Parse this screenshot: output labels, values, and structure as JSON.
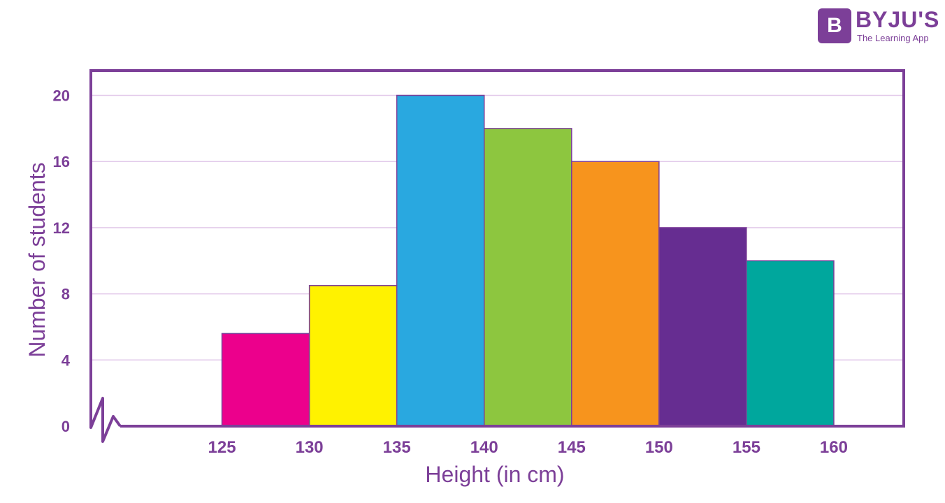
{
  "logo": {
    "mark": "B",
    "name": "BYJU'S",
    "tagline": "The Learning App"
  },
  "colors": {
    "frame": "#7c3f98",
    "grid": "#e2c9ea",
    "text": "#7c3f98"
  },
  "chart_data": {
    "type": "bar",
    "title": "",
    "xlabel": "Height (in cm)",
    "ylabel": "Number of students",
    "x_tick_labels": [
      "125",
      "130",
      "135",
      "140",
      "145",
      "150",
      "155",
      "160"
    ],
    "y_ticks": [
      0,
      4,
      8,
      12,
      16,
      20
    ],
    "ylim": [
      0,
      21.5
    ],
    "xlim": [
      117.5,
      164
    ],
    "axis_break": true,
    "grid": "horizontal",
    "bins": [
      {
        "from": 125,
        "to": 130,
        "value": 5.6,
        "color": "#ec008c"
      },
      {
        "from": 130,
        "to": 135,
        "value": 8.5,
        "color": "#fff200"
      },
      {
        "from": 135,
        "to": 140,
        "value": 20,
        "color": "#29a8e0"
      },
      {
        "from": 140,
        "to": 145,
        "value": 18,
        "color": "#8dc63f"
      },
      {
        "from": 145,
        "to": 150,
        "value": 16,
        "color": "#f7941d"
      },
      {
        "from": 150,
        "to": 155,
        "value": 12,
        "color": "#662d91"
      },
      {
        "from": 155,
        "to": 160,
        "value": 10,
        "color": "#00a79d"
      }
    ]
  }
}
